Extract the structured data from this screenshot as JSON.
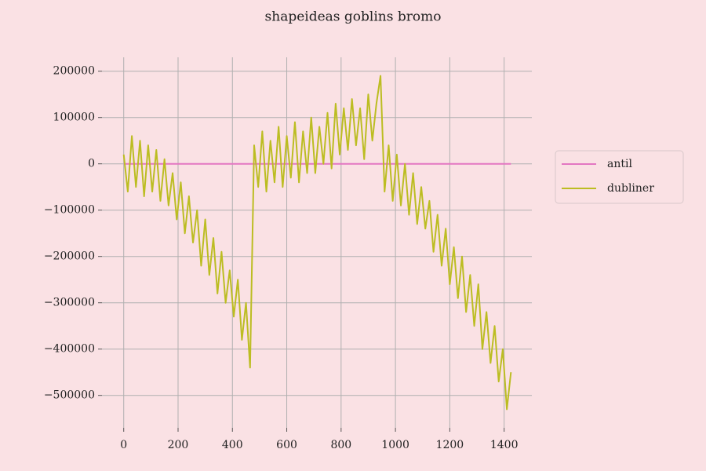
{
  "chart_data": {
    "type": "line",
    "title": "shapeideas goblins bromo",
    "x": [
      0,
      15,
      30,
      45,
      60,
      75,
      90,
      105,
      120,
      135,
      150,
      165,
      180,
      195,
      210,
      225,
      240,
      255,
      270,
      285,
      300,
      315,
      330,
      345,
      360,
      375,
      390,
      405,
      420,
      435,
      450,
      465,
      480,
      495,
      510,
      525,
      540,
      555,
      570,
      585,
      600,
      615,
      630,
      645,
      660,
      675,
      690,
      705,
      720,
      735,
      750,
      765,
      780,
      795,
      810,
      825,
      840,
      855,
      870,
      885,
      900,
      915,
      930,
      945,
      960,
      975,
      990,
      1005,
      1020,
      1035,
      1050,
      1065,
      1080,
      1095,
      1110,
      1125,
      1140,
      1155,
      1170,
      1185,
      1200,
      1215,
      1230,
      1245,
      1260,
      1275,
      1290,
      1305,
      1320,
      1335,
      1350,
      1365,
      1380,
      1395,
      1410,
      1425
    ],
    "series": [
      {
        "name": "antil",
        "color": "#e377c2",
        "values": [
          0,
          0,
          0,
          0,
          0,
          0,
          0,
          0,
          0,
          0,
          0,
          0,
          0,
          0,
          0,
          0,
          0,
          0,
          0,
          0,
          0,
          0,
          0,
          0,
          0,
          0,
          0,
          0,
          0,
          0,
          0,
          0,
          0,
          0,
          0,
          0,
          0,
          0,
          0,
          0,
          0,
          0,
          0,
          0,
          0,
          0,
          0,
          0,
          0,
          0,
          0,
          0,
          0,
          0,
          0,
          0,
          0,
          0,
          0,
          0,
          0,
          0,
          0,
          0,
          0,
          0,
          0,
          0,
          0,
          0,
          0,
          0,
          0,
          0,
          0,
          0,
          0,
          0,
          0,
          0,
          0,
          0,
          0,
          0,
          0,
          0,
          0,
          0,
          0,
          0,
          0,
          0,
          0,
          0,
          0,
          0
        ]
      },
      {
        "name": "dubliner",
        "color": "#bcbd22",
        "values": [
          20000,
          -60000,
          60000,
          -50000,
          50000,
          -70000,
          40000,
          -60000,
          30000,
          -80000,
          10000,
          -90000,
          -20000,
          -120000,
          -40000,
          -150000,
          -70000,
          -170000,
          -100000,
          -220000,
          -120000,
          -240000,
          -160000,
          -280000,
          -190000,
          -300000,
          -230000,
          -330000,
          -250000,
          -380000,
          -300000,
          -440000,
          40000,
          -50000,
          70000,
          -60000,
          50000,
          -40000,
          80000,
          -50000,
          60000,
          -30000,
          90000,
          -40000,
          70000,
          -20000,
          100000,
          -20000,
          80000,
          0,
          110000,
          -10000,
          130000,
          20000,
          120000,
          30000,
          140000,
          40000,
          120000,
          10000,
          150000,
          50000,
          130000,
          190000,
          -60000,
          40000,
          -80000,
          20000,
          -90000,
          0,
          -110000,
          -20000,
          -130000,
          -50000,
          -140000,
          -80000,
          -190000,
          -110000,
          -220000,
          -140000,
          -260000,
          -180000,
          -290000,
          -200000,
          -320000,
          -240000,
          -350000,
          -260000,
          -400000,
          -320000,
          -430000,
          -350000,
          -470000,
          -400000,
          -530000,
          -450000
        ]
      }
    ],
    "xlim": [
      -80,
      1502
    ],
    "ylim": [
      -570000,
      230000
    ],
    "xticks": [
      0,
      200,
      400,
      600,
      800,
      1000,
      1200,
      1400
    ],
    "yticks": [
      200000,
      100000,
      0,
      {
        "value": -100000,
        "label": "−100000"
      },
      {
        "value": -200000,
        "label": "−200000"
      },
      {
        "value": -300000,
        "label": "−300000"
      },
      {
        "value": -400000,
        "label": "−400000"
      },
      {
        "value": -500000,
        "label": "−500000"
      }
    ],
    "grid": true,
    "legend": "right"
  }
}
